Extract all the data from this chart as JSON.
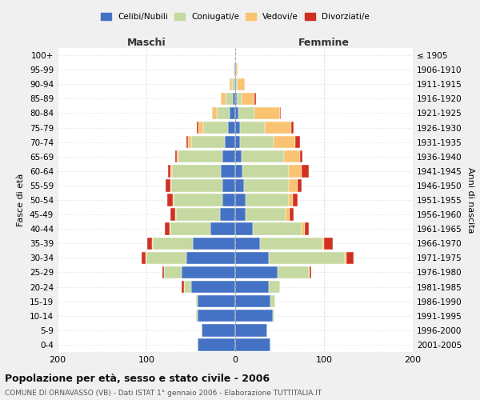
{
  "age_groups": [
    "0-4",
    "5-9",
    "10-14",
    "15-19",
    "20-24",
    "25-29",
    "30-34",
    "35-39",
    "40-44",
    "45-49",
    "50-54",
    "55-59",
    "60-64",
    "65-69",
    "70-74",
    "75-79",
    "80-84",
    "85-89",
    "90-94",
    "95-99",
    "100+"
  ],
  "birth_years": [
    "2001-2005",
    "1996-2000",
    "1991-1995",
    "1986-1990",
    "1981-1985",
    "1976-1980",
    "1971-1975",
    "1966-1970",
    "1961-1965",
    "1956-1960",
    "1951-1955",
    "1946-1950",
    "1941-1945",
    "1936-1940",
    "1931-1935",
    "1926-1930",
    "1921-1925",
    "1916-1920",
    "1911-1915",
    "1906-1910",
    "≤ 1905"
  ],
  "maschi_celibe": [
    42,
    38,
    42,
    42,
    50,
    60,
    55,
    48,
    28,
    17,
    14,
    14,
    16,
    14,
    12,
    8,
    6,
    3,
    1,
    1,
    0
  ],
  "maschi_coniugato": [
    0,
    0,
    2,
    2,
    8,
    20,
    45,
    45,
    45,
    50,
    55,
    58,
    55,
    50,
    38,
    28,
    15,
    8,
    3,
    1,
    0
  ],
  "maschi_vedovo": [
    0,
    0,
    0,
    0,
    0,
    0,
    1,
    1,
    1,
    1,
    1,
    1,
    2,
    2,
    3,
    5,
    5,
    5,
    2,
    0,
    0
  ],
  "maschi_divorziato": [
    0,
    0,
    0,
    0,
    2,
    2,
    4,
    5,
    5,
    5,
    7,
    5,
    3,
    2,
    2,
    2,
    0,
    0,
    0,
    0,
    0
  ],
  "femmine_nubile": [
    40,
    36,
    42,
    40,
    38,
    48,
    38,
    28,
    20,
    12,
    12,
    10,
    8,
    7,
    5,
    5,
    4,
    2,
    1,
    1,
    0
  ],
  "femmine_coniugata": [
    0,
    0,
    2,
    5,
    12,
    35,
    85,
    70,
    55,
    45,
    48,
    50,
    52,
    48,
    38,
    28,
    18,
    5,
    2,
    0,
    0
  ],
  "femmine_vedova": [
    0,
    0,
    0,
    0,
    0,
    1,
    2,
    2,
    3,
    4,
    5,
    10,
    15,
    18,
    25,
    30,
    28,
    15,
    8,
    2,
    0
  ],
  "femmine_divorziata": [
    0,
    0,
    0,
    0,
    0,
    2,
    8,
    10,
    5,
    5,
    5,
    5,
    8,
    3,
    5,
    3,
    1,
    1,
    0,
    0,
    0
  ],
  "colors": {
    "celibe": "#4472c4",
    "coniugato": "#c5d9a0",
    "vedovo": "#fac372",
    "divorziato": "#d03020"
  },
  "title": "Popolazione per età, sesso e stato civile - 2006",
  "subtitle": "COMUNE DI ORNAVASSO (VB) - Dati ISTAT 1° gennaio 2006 - Elaborazione TUTTITALIA.IT",
  "xlabel_maschi": "Maschi",
  "xlabel_femmine": "Femmine",
  "ylabel_left": "Fasce di età",
  "ylabel_right": "Anni di nascita",
  "xlim": 200,
  "bg_color": "#f0f0f0",
  "plot_bg": "#ffffff",
  "legend_labels": [
    "Celibi/Nubili",
    "Coniugati/e",
    "Vedovi/e",
    "Divorziati/e"
  ]
}
